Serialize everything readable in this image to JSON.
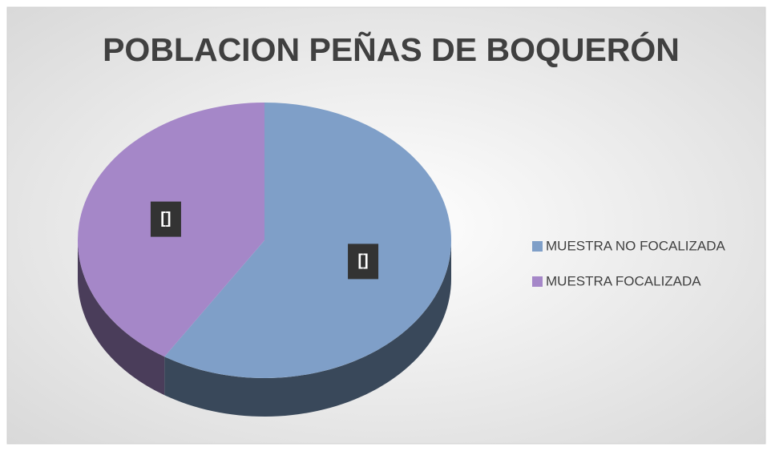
{
  "chart_data": {
    "type": "pie",
    "title": "POBLACION PEÑAS DE BOQUERÓN",
    "categories": [
      "MUESTRA NO FOCALIZADA",
      "MUESTRA FOCALIZADA"
    ],
    "values": [
      59,
      41
    ],
    "data_labels": [
      "[]",
      "[]"
    ],
    "colors": [
      "#7f9fc8",
      "#a587c8"
    ],
    "legend": "right"
  }
}
